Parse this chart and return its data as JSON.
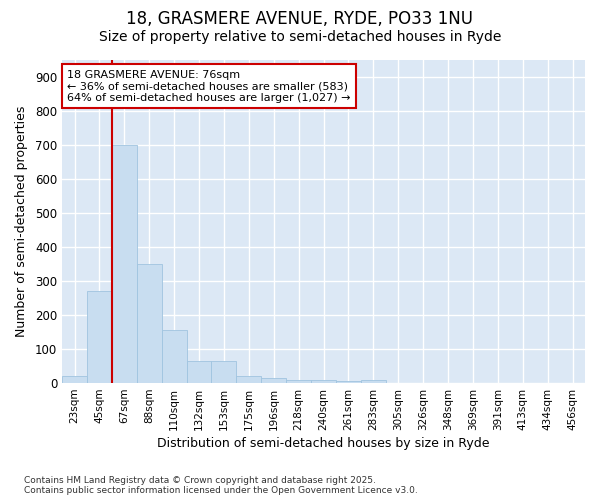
{
  "title_line1": "18, GRASMERE AVENUE, RYDE, PO33 1NU",
  "title_line2": "Size of property relative to semi-detached houses in Ryde",
  "xlabel": "Distribution of semi-detached houses by size in Ryde",
  "ylabel": "Number of semi-detached properties",
  "categories": [
    "23sqm",
    "45sqm",
    "67sqm",
    "88sqm",
    "110sqm",
    "132sqm",
    "153sqm",
    "175sqm",
    "196sqm",
    "218sqm",
    "240sqm",
    "261sqm",
    "283sqm",
    "305sqm",
    "326sqm",
    "348sqm",
    "369sqm",
    "391sqm",
    "413sqm",
    "434sqm",
    "456sqm"
  ],
  "values": [
    20,
    270,
    700,
    350,
    155,
    65,
    65,
    22,
    15,
    10,
    8,
    5,
    8,
    0,
    0,
    0,
    0,
    0,
    0,
    0,
    0
  ],
  "bar_color": "#c8ddf0",
  "bar_edge_color": "#a0c4e0",
  "red_line_x": 1.5,
  "annotation_text": "18 GRASMERE AVENUE: 76sqm\n← 36% of semi-detached houses are smaller (583)\n64% of semi-detached houses are larger (1,027) →",
  "annotation_box_color": "#ffffff",
  "annotation_box_edge": "#cc0000",
  "red_line_color": "#cc0000",
  "figure_bg_color": "#ffffff",
  "plot_bg_color": "#dce8f5",
  "grid_color": "#ffffff",
  "ylim": [
    0,
    950
  ],
  "yticks": [
    0,
    100,
    200,
    300,
    400,
    500,
    600,
    700,
    800,
    900
  ],
  "footnote": "Contains HM Land Registry data © Crown copyright and database right 2025.\nContains public sector information licensed under the Open Government Licence v3.0.",
  "title_fontsize": 12,
  "subtitle_fontsize": 10,
  "tick_fontsize": 7.5,
  "label_fontsize": 9,
  "ann_fontsize": 8
}
